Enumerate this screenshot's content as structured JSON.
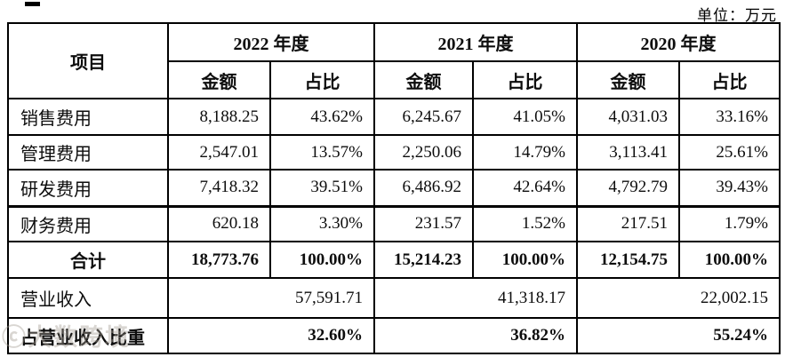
{
  "page": {
    "unit_label": "单位：万元",
    "watermark": "ⓒ大数跨境"
  },
  "table": {
    "item_header": "项目",
    "year_headers": [
      "2022 年度",
      "2021 年度",
      "2020 年度"
    ],
    "sub_headers": [
      "金额",
      "占比"
    ],
    "rows": [
      {
        "label": "销售费用",
        "values": [
          "8,188.25",
          "43.62%",
          "6,245.67",
          "41.05%",
          "4,031.03",
          "33.16%"
        ]
      },
      {
        "label": "管理费用",
        "values": [
          "2,547.01",
          "13.57%",
          "2,250.06",
          "14.79%",
          "3,113.41",
          "25.61%"
        ]
      },
      {
        "label": "研发费用",
        "thick_bottom": true,
        "values": [
          "7,418.32",
          "39.51%",
          "6,486.92",
          "42.64%",
          "4,792.79",
          "39.43%"
        ]
      },
      {
        "label": "财务费用",
        "values": [
          "620.18",
          "3.30%",
          "231.57",
          "1.52%",
          "217.51",
          "1.79%"
        ]
      },
      {
        "label": "合计",
        "bold": true,
        "center_label": true,
        "values": [
          "18,773.76",
          "100.00%",
          "15,214.23",
          "100.00%",
          "12,154.75",
          "100.00%"
        ]
      },
      {
        "label": "营业收入",
        "merged": true,
        "values": [
          "57,591.71",
          "41,318.17",
          "22,002.15"
        ]
      },
      {
        "label": "占营业收入比重",
        "bold": true,
        "merged": true,
        "values": [
          "32.60%",
          "36.82%",
          "55.24%"
        ]
      }
    ]
  }
}
